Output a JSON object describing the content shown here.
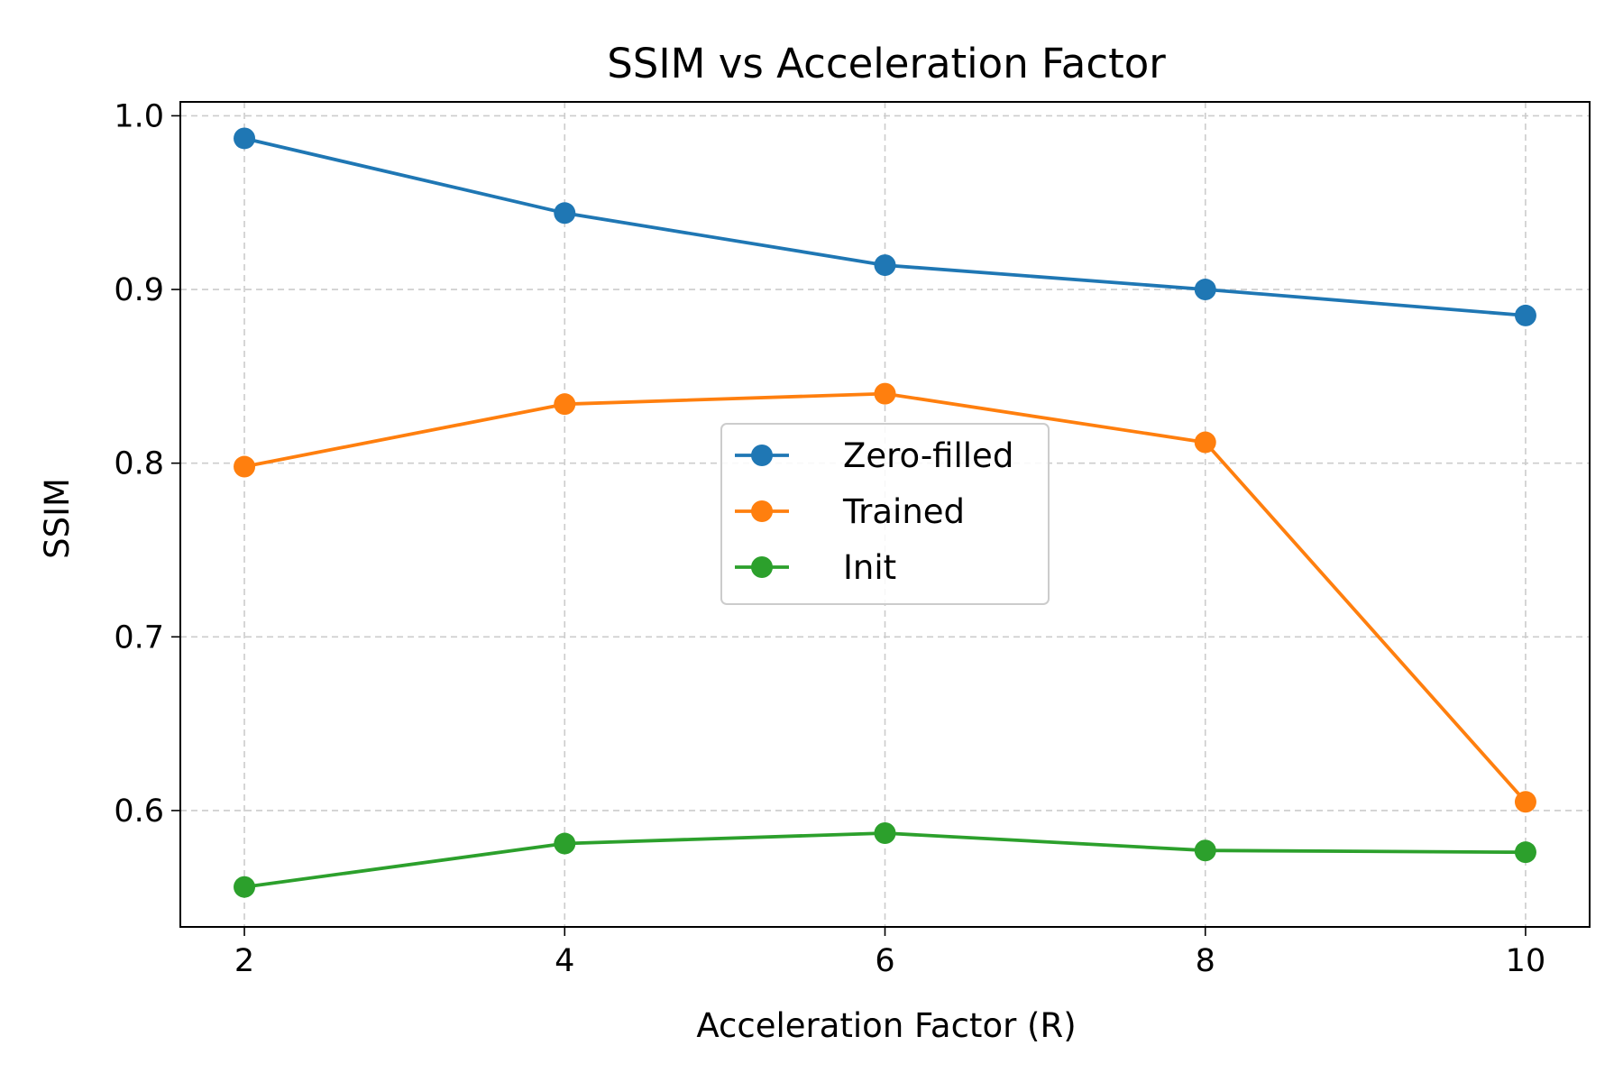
{
  "chart_data": {
    "type": "line",
    "title": "SSIM vs Acceleration Factor",
    "xlabel": "Acceleration Factor (R)",
    "ylabel": "SSIM",
    "x": [
      2,
      4,
      6,
      8,
      10
    ],
    "xticks": [
      2,
      4,
      6,
      8,
      10
    ],
    "xtick_labels": [
      "2",
      "4",
      "6",
      "8",
      "10"
    ],
    "yticks": [
      0.6,
      0.7,
      0.8,
      0.9,
      1.0
    ],
    "ytick_labels": [
      "0.6",
      "0.7",
      "0.8",
      "0.9",
      "1.0"
    ],
    "xlim": [
      1.6,
      10.4
    ],
    "ylim": [
      0.533,
      1.008
    ],
    "grid": true,
    "legend_position": "center",
    "series": [
      {
        "name": "Zero-filled",
        "color": "#1f77b4",
        "values": [
          0.987,
          0.944,
          0.914,
          0.9,
          0.885
        ]
      },
      {
        "name": "Trained",
        "color": "#ff7f0e",
        "values": [
          0.798,
          0.834,
          0.84,
          0.812,
          0.605
        ]
      },
      {
        "name": "Init",
        "color": "#2ca02c",
        "values": [
          0.556,
          0.581,
          0.587,
          0.577,
          0.576
        ]
      }
    ]
  }
}
